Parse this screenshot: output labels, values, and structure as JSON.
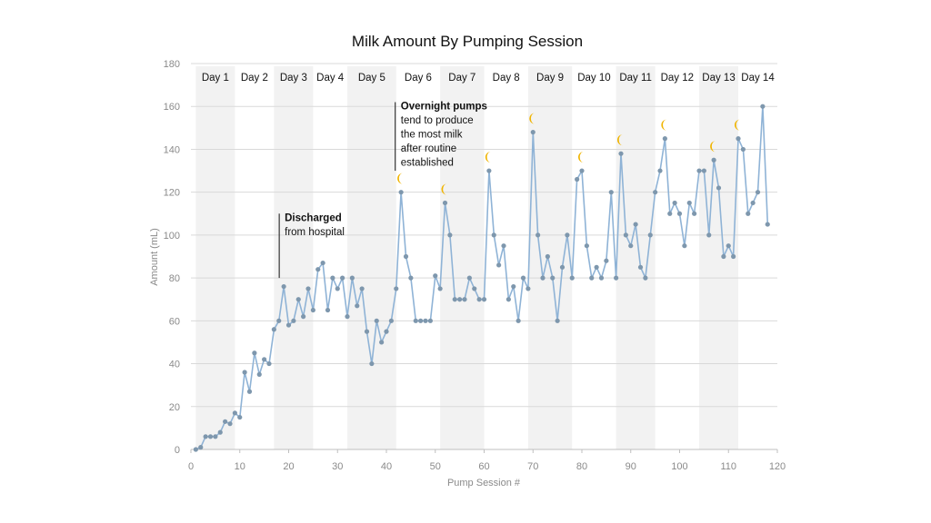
{
  "chart_data": {
    "type": "line",
    "title": "Milk Amount By Pumping Session",
    "xlabel": "Pump Session #",
    "ylabel": "Amount (mL)",
    "xlim": [
      0,
      120
    ],
    "ylim": [
      0,
      180
    ],
    "x_ticks": [
      0,
      10,
      20,
      30,
      40,
      50,
      60,
      70,
      80,
      90,
      100,
      110,
      120
    ],
    "y_ticks": [
      0,
      20,
      40,
      60,
      80,
      100,
      120,
      140,
      160,
      180
    ],
    "grid": "horizontal",
    "legend": "none",
    "colors": {
      "line": "#8fb3d6",
      "marker": "#7e97ad",
      "band": "#f2f2f2",
      "moon": "#f0b400",
      "grid": "#d9d9d9"
    },
    "day_bands": [
      {
        "label": "Day 1",
        "start": 1,
        "end": 9,
        "shaded": true
      },
      {
        "label": "Day 2",
        "start": 9,
        "end": 17,
        "shaded": false
      },
      {
        "label": "Day 3",
        "start": 17,
        "end": 25,
        "shaded": true
      },
      {
        "label": "Day 4",
        "start": 25,
        "end": 32,
        "shaded": false
      },
      {
        "label": "Day 5",
        "start": 32,
        "end": 42,
        "shaded": true
      },
      {
        "label": "Day 6",
        "start": 42,
        "end": 51,
        "shaded": false
      },
      {
        "label": "Day 7",
        "start": 51,
        "end": 60,
        "shaded": true
      },
      {
        "label": "Day 8",
        "start": 60,
        "end": 69,
        "shaded": false
      },
      {
        "label": "Day 9",
        "start": 69,
        "end": 78,
        "shaded": true
      },
      {
        "label": "Day 10",
        "start": 78,
        "end": 87,
        "shaded": false
      },
      {
        "label": "Day 11",
        "start": 87,
        "end": 95,
        "shaded": true
      },
      {
        "label": "Day 12",
        "start": 95,
        "end": 104,
        "shaded": false
      },
      {
        "label": "Day 13",
        "start": 104,
        "end": 112,
        "shaded": true
      },
      {
        "label": "Day 14",
        "start": 112,
        "end": 120,
        "shaded": false
      }
    ],
    "series": [
      {
        "x": [
          1,
          2,
          3,
          4,
          5,
          6,
          7,
          8,
          9,
          10,
          11,
          12,
          13,
          14,
          15,
          16,
          17,
          18,
          19,
          20,
          21,
          22,
          23,
          24,
          25,
          26,
          27,
          28,
          29,
          30,
          31,
          32,
          33,
          34,
          35,
          36,
          37,
          38,
          39,
          40,
          41,
          42,
          43,
          44,
          45,
          46,
          47,
          48,
          49,
          50,
          51,
          52,
          53,
          54,
          55,
          56,
          57,
          58,
          59,
          60,
          61,
          62,
          63,
          64,
          65,
          66,
          67,
          68,
          69,
          70,
          71,
          72,
          73,
          74,
          75,
          76,
          77,
          78,
          79,
          80,
          81,
          82,
          83,
          84,
          85,
          86,
          87,
          88,
          89,
          90,
          91,
          92,
          93,
          94,
          95,
          96,
          97,
          98,
          99,
          100,
          101,
          102,
          103,
          104,
          105,
          106,
          107,
          108,
          109,
          110,
          111,
          112,
          113,
          114,
          115,
          116,
          117,
          118
        ],
        "values": [
          0,
          1,
          6,
          6,
          6,
          8,
          13,
          12,
          17,
          15,
          36,
          27,
          45,
          35,
          42,
          40,
          56,
          60,
          76,
          58,
          60,
          70,
          62,
          75,
          65,
          84,
          87,
          65,
          80,
          75,
          80,
          62,
          80,
          67,
          75,
          55,
          40,
          60,
          50,
          55,
          60,
          75,
          120,
          90,
          80,
          60,
          60,
          60,
          60,
          81,
          75,
          115,
          100,
          70,
          70,
          70,
          80,
          75,
          70,
          70,
          130,
          100,
          86,
          95,
          70,
          76,
          60,
          80,
          75,
          148,
          100,
          80,
          90,
          80,
          60,
          85,
          100,
          80,
          126,
          130,
          95,
          80,
          85,
          80,
          88,
          120,
          80,
          138,
          100,
          95,
          105,
          85,
          80,
          100,
          120,
          130,
          145,
          110,
          115,
          110,
          95,
          115,
          110,
          130,
          130,
          100,
          135,
          122,
          90,
          95,
          90,
          145,
          140,
          110,
          115,
          120,
          160,
          105
        ]
      }
    ],
    "moon_sessions": [
      43,
      52,
      61,
      70,
      80,
      88,
      97,
      107,
      112
    ],
    "annotations": [
      {
        "at_x": 19,
        "at_y": 80,
        "to_y": 110,
        "bold": "Discharged",
        "lines": [
          "from hospital"
        ]
      },
      {
        "at_x": 42,
        "at_y": 130,
        "to_y": 162,
        "bold": "Overnight pumps",
        "lines": [
          "tend to produce",
          "the most milk",
          "after routine",
          "established"
        ]
      }
    ]
  }
}
